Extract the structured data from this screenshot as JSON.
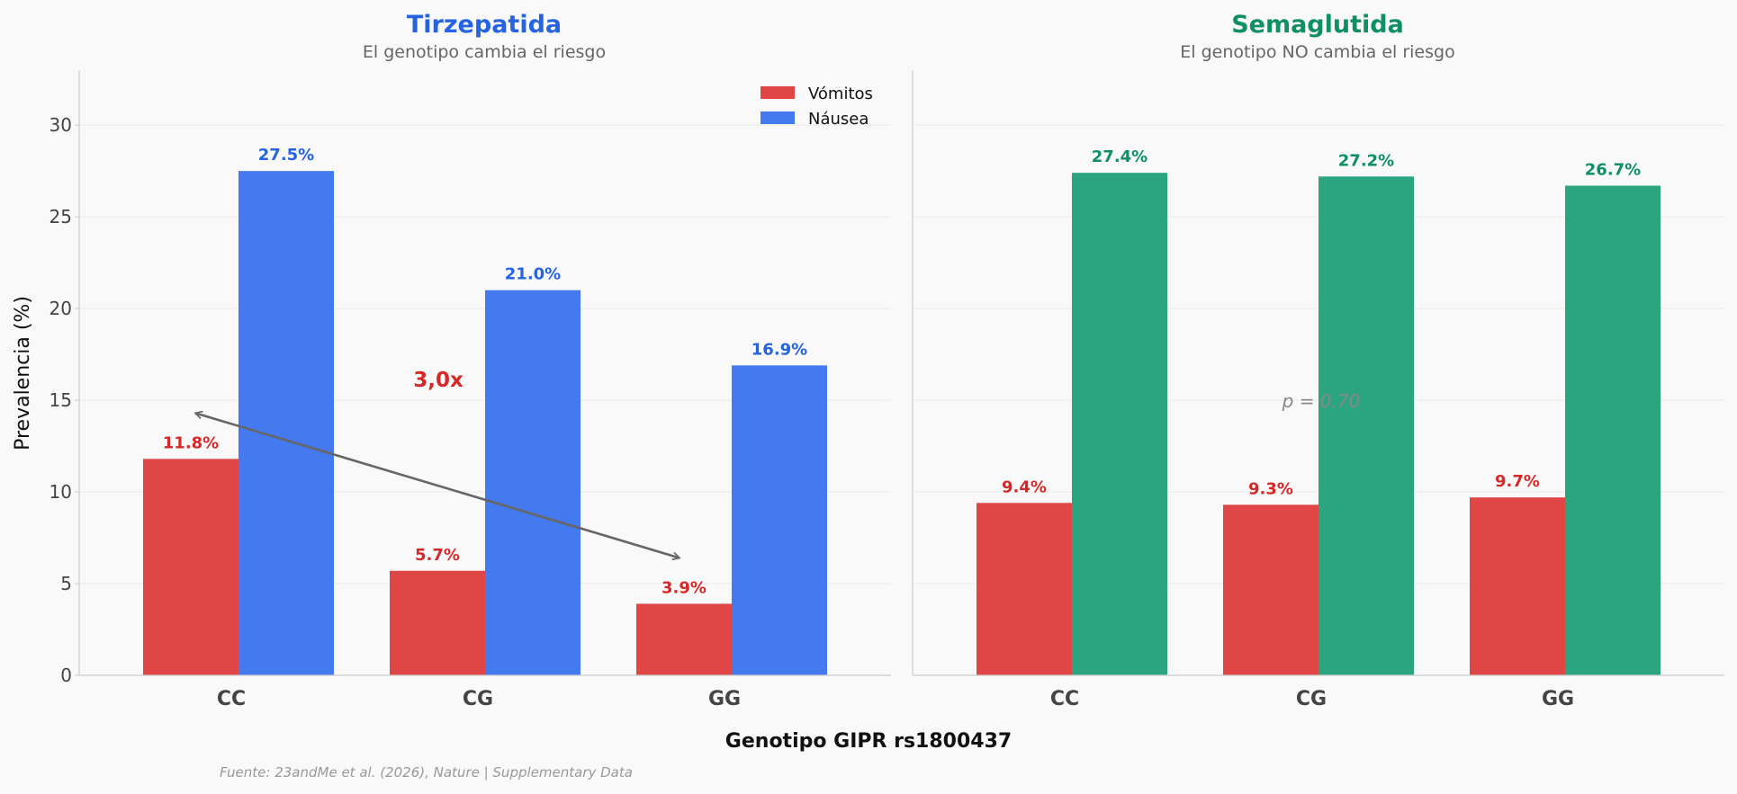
{
  "colors": {
    "vomit": "#e04646",
    "vomit_text": "#d62828",
    "tirz_nausea": "#4579ef",
    "tirz_text": "#2563e0",
    "sema_nausea": "#2ba480",
    "sema_text": "#0e8f64",
    "arrow": "#666666",
    "grid": "#e9e9e9",
    "axis": "#cccccc"
  },
  "chart_data": [
    {
      "type": "bar",
      "title": "Tirzepatida",
      "subtitle": "El genotipo cambia el riesgo",
      "categories": [
        "CC",
        "CG",
        "GG"
      ],
      "series": [
        {
          "name": "Vómitos",
          "values": [
            11.8,
            5.7,
            3.9
          ],
          "labels": [
            "11.8%",
            "5.7%",
            "3.9%"
          ]
        },
        {
          "name": "Náusea",
          "values": [
            27.5,
            21.0,
            16.9
          ],
          "labels": [
            "27.5%",
            "21.0%",
            "16.9%"
          ]
        }
      ],
      "ylim": [
        0,
        33
      ],
      "yticks": [
        0,
        5,
        10,
        15,
        20,
        25,
        30
      ],
      "ylabel": "Prevalencia (%)",
      "legend": "top-right",
      "annotation": {
        "text": "3,0x",
        "from_category": "CC",
        "to_category": "GG",
        "from_value": 14.3,
        "to_value": 6.4,
        "label_value": 15.5
      }
    },
    {
      "type": "bar",
      "title": "Semaglutida",
      "subtitle": "El genotipo NO cambia el riesgo",
      "categories": [
        "CC",
        "CG",
        "GG"
      ],
      "series": [
        {
          "name": "Vómitos",
          "values": [
            9.4,
            9.3,
            9.7
          ],
          "labels": [
            "9.4%",
            "9.3%",
            "9.7%"
          ]
        },
        {
          "name": "Náusea",
          "values": [
            27.4,
            27.2,
            26.7
          ],
          "labels": [
            "27.4%",
            "27.2%",
            "26.7%"
          ]
        }
      ],
      "ylim": [
        0,
        33
      ],
      "annotation": {
        "text": "p = 0.70",
        "value": 15.0
      }
    }
  ],
  "xlabel": "Genotipo GIPR rs1800437",
  "source": "Fuente: 23andMe et al. (2026), Nature | Supplementary Data"
}
